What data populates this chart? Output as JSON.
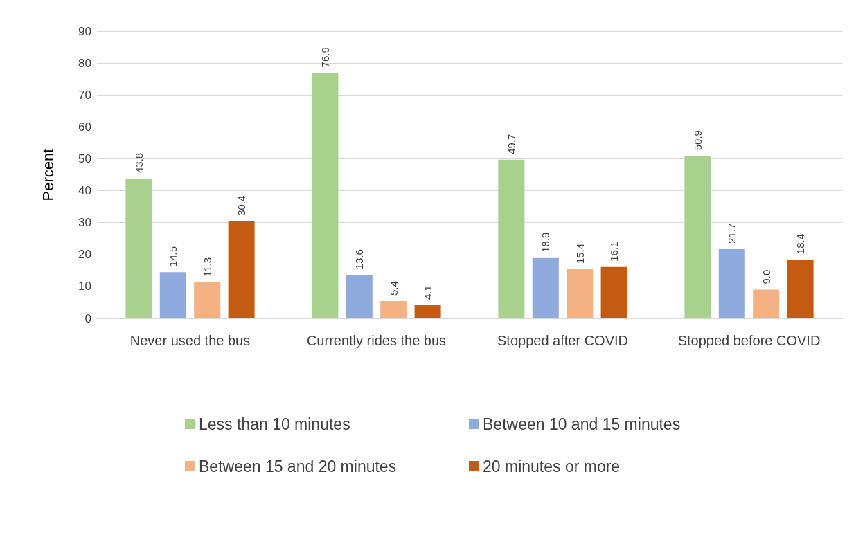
{
  "chart_data": {
    "type": "bar",
    "ylabel": "Percent",
    "categories": [
      "Never used the bus",
      "Currently rides the bus",
      "Stopped after COVID",
      "Stopped before COVID"
    ],
    "series": [
      {
        "name": "Less than 10 minutes",
        "color": "#a9d18e",
        "values": [
          43.8,
          76.9,
          49.7,
          50.9
        ],
        "value_labels": [
          "43.8",
          "76.9",
          "49.7",
          "50.9"
        ]
      },
      {
        "name": "Between 10 and 15 minutes",
        "color": "#8faadc",
        "values": [
          14.5,
          13.6,
          18.9,
          21.7
        ],
        "value_labels": [
          "14.5",
          "13.6",
          "18.9",
          "21.7"
        ]
      },
      {
        "name": "Between 15 and 20 minutes",
        "color": "#f4b183",
        "values": [
          11.3,
          5.4,
          15.4,
          9.0
        ],
        "value_labels": [
          "11.3",
          "5.4",
          "15.4",
          "9.0"
        ]
      },
      {
        "name": "20 minutes or more",
        "color": "#c55a11",
        "values": [
          30.4,
          4.1,
          16.1,
          18.4
        ],
        "value_labels": [
          "30.4",
          "4.1",
          "16.1",
          "18.4"
        ]
      }
    ],
    "ylim": [
      0,
      90
    ],
    "yticks": [
      0,
      10,
      20,
      30,
      40,
      50,
      60,
      70,
      80,
      90
    ],
    "grid": "y",
    "legend": "bottom"
  }
}
